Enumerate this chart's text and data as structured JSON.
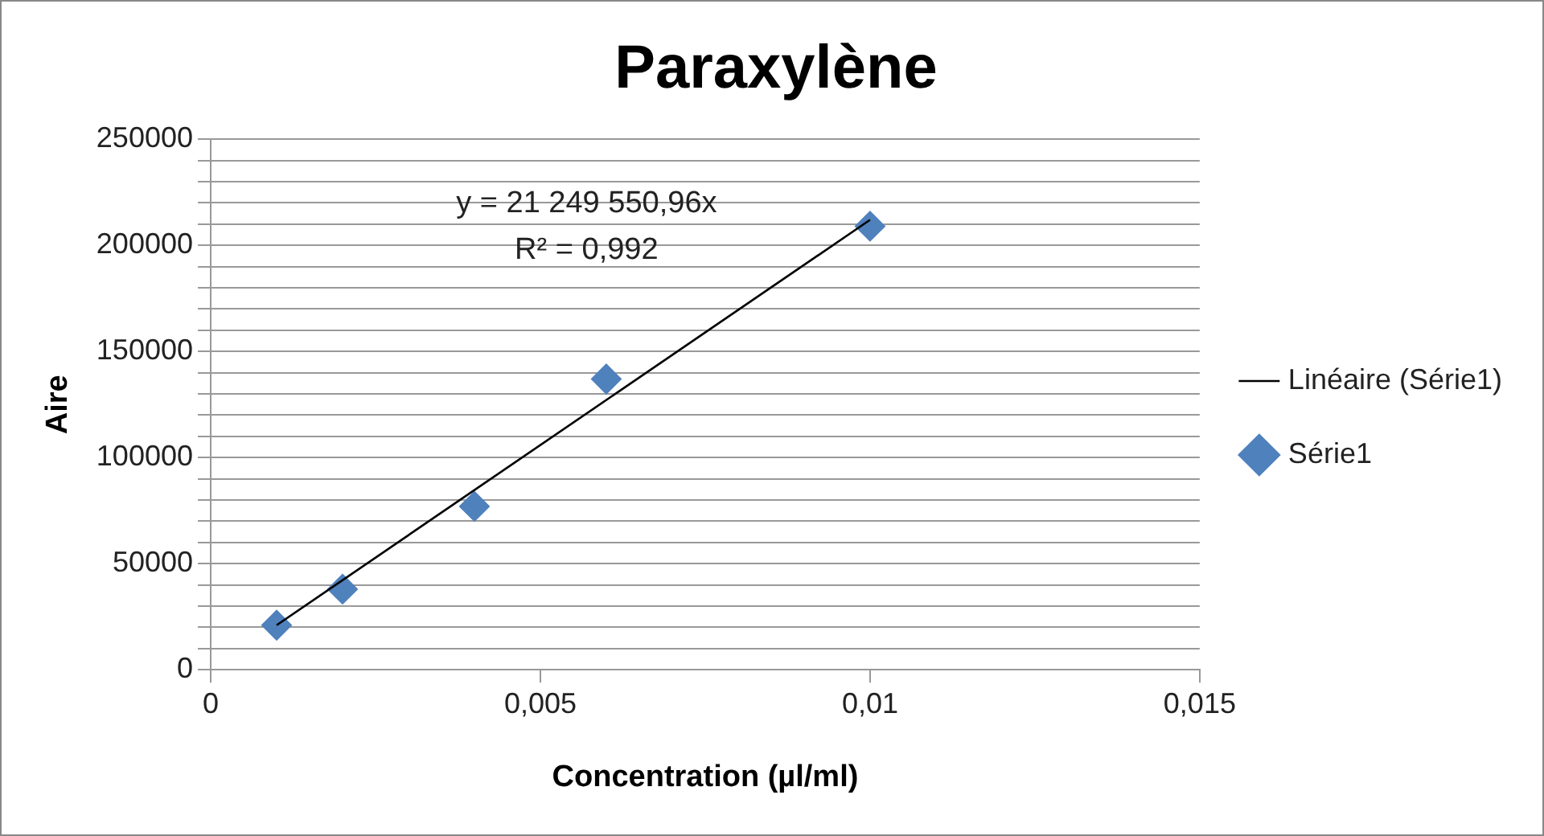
{
  "chart_data": {
    "type": "scatter",
    "title": "Paraxylène",
    "xlabel": "Concentration (µl/ml)",
    "ylabel": "Aire",
    "series": [
      {
        "name": "Série1",
        "type": "scatter",
        "color": "#4f81bd",
        "marker": "diamond",
        "x": [
          0.001,
          0.002,
          0.004,
          0.006,
          0.01
        ],
        "values": [
          21000,
          38000,
          77000,
          137000,
          209000
        ]
      },
      {
        "name": "Linéaire (Série1)",
        "type": "line",
        "color": "#000000",
        "marker": "none",
        "line_style": "solid",
        "x": [
          0.001,
          0.01
        ],
        "values": [
          21000,
          212000
        ]
      }
    ],
    "xlim": [
      0,
      0.015
    ],
    "xticks": [
      {
        "value": 0,
        "label": "0"
      },
      {
        "value": 0.005,
        "label": "0,005"
      },
      {
        "value": 0.01,
        "label": "0,01"
      },
      {
        "value": 0.015,
        "label": "0,015"
      }
    ],
    "ylim": [
      0,
      250000
    ],
    "yticks": [
      0,
      {
        "value": 10000,
        "label": null
      },
      {
        "value": 20000,
        "label": null
      },
      {
        "value": 30000,
        "label": null
      },
      {
        "value": 40000,
        "label": null
      },
      50000,
      {
        "value": 60000,
        "label": null
      },
      {
        "value": 70000,
        "label": null
      },
      {
        "value": 80000,
        "label": null
      },
      {
        "value": 90000,
        "label": null
      },
      100000,
      {
        "value": 110000,
        "label": null
      },
      {
        "value": 120000,
        "label": null
      },
      {
        "value": 130000,
        "label": null
      },
      {
        "value": 140000,
        "label": null
      },
      150000,
      {
        "value": 160000,
        "label": null
      },
      {
        "value": 170000,
        "label": null
      },
      {
        "value": 180000,
        "label": null
      },
      {
        "value": 190000,
        "label": null
      },
      200000,
      {
        "value": 210000,
        "label": null
      },
      {
        "value": 220000,
        "label": null
      },
      {
        "value": 230000,
        "label": null
      },
      {
        "value": 240000,
        "label": null
      },
      250000
    ],
    "grid": "y",
    "legend": "right",
    "annotations": [
      "y = 21 249 550,96x",
      "R² = 0,992"
    ]
  }
}
